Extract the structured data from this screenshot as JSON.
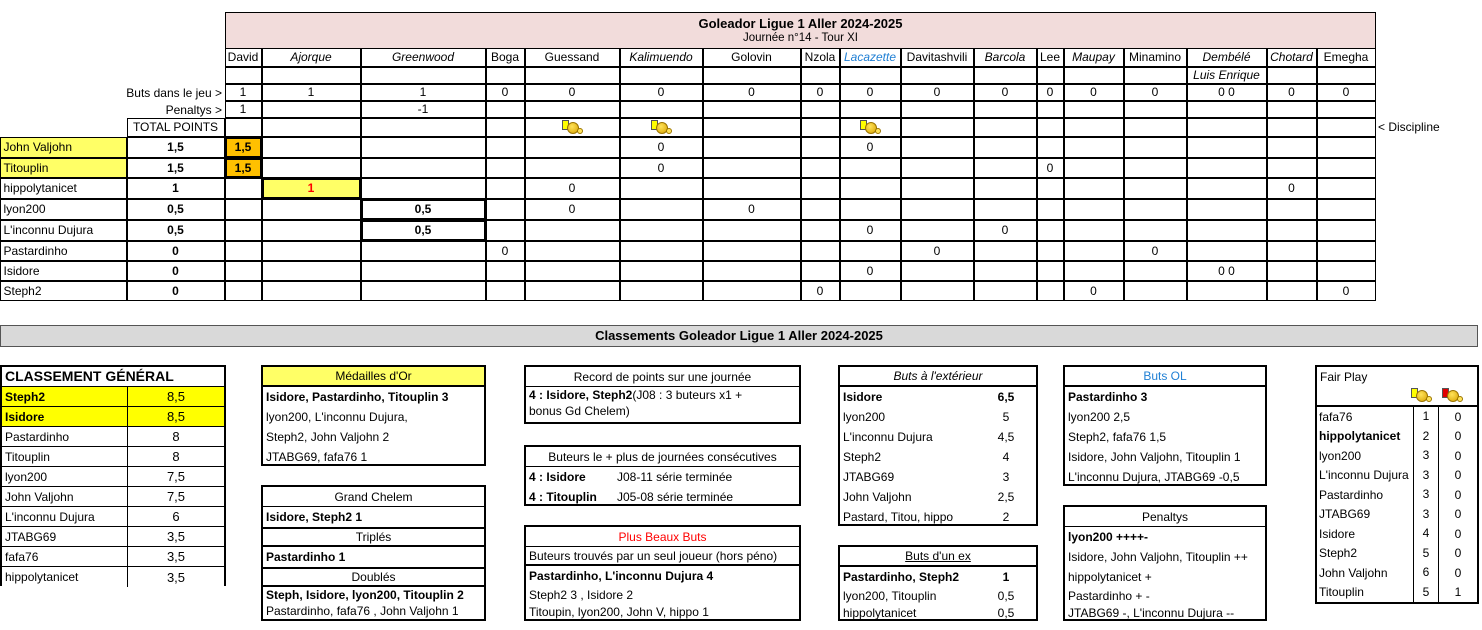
{
  "header": {
    "title": "Goleador Ligue 1 Aller 2024-2025",
    "subtitle": "Journée n°14 - Tour XI",
    "discipline_label": "< Discipline"
  },
  "grid": {
    "columns": [
      {
        "name": "David",
        "italic": false
      },
      {
        "name": "Ajorque",
        "italic": true
      },
      {
        "name": "Greenwood",
        "italic": true
      },
      {
        "name": "Boga",
        "italic": false
      },
      {
        "name": "Guessand",
        "italic": false
      },
      {
        "name": "Kalimuendo",
        "italic": true
      },
      {
        "name": "Golovin",
        "italic": false
      },
      {
        "name": "Nzola",
        "italic": false
      },
      {
        "name": "Lacazette",
        "italic": true,
        "color": "#1f7fd4"
      },
      {
        "name": "Davitashvili",
        "italic": false
      },
      {
        "name": "Barcola",
        "italic": true
      },
      {
        "name": "Lee",
        "italic": false
      },
      {
        "name": "Maupay",
        "italic": true
      },
      {
        "name": "Minamino",
        "italic": false
      },
      {
        "name": "Dembélé",
        "italic": true
      },
      {
        "name": "Chotard",
        "italic": true
      },
      {
        "name": "Emegha",
        "italic": false
      }
    ],
    "subrow": [
      "",
      "",
      "",
      "",
      "",
      "",
      "",
      "",
      "",
      "",
      "",
      "",
      "",
      "",
      "Luis Enrique",
      "",
      ""
    ],
    "buts_label": "Buts dans le jeu >",
    "buts": [
      "1",
      "1",
      "1",
      "0",
      "0",
      "0",
      "0",
      "0",
      "0",
      "0",
      "0",
      "0",
      "0",
      "0",
      "0 0",
      "0",
      "0"
    ],
    "penaltys_label": "Penaltys >",
    "penaltys": [
      "1",
      "",
      "-1",
      "",
      "",
      "",
      "",
      "",
      "",
      "",
      "",
      "",
      "",
      "",
      "",
      "",
      ""
    ],
    "total_label": "TOTAL POINTS",
    "discipline": [
      "",
      "",
      "",
      "",
      "yellow-card",
      "yellow-card",
      "",
      "",
      "yellow-card",
      "",
      "",
      "",
      "",
      "",
      "",
      "",
      ""
    ],
    "players": [
      {
        "name": "John Valjohn",
        "total": "1,5",
        "highlight": true,
        "cells": [
          "1,5",
          "",
          "",
          "",
          "",
          "0",
          "",
          "",
          "0",
          "",
          "",
          "",
          "",
          "",
          "",
          "",
          ""
        ]
      },
      {
        "name": "Titouplin",
        "total": "1,5",
        "highlight": true,
        "cells": [
          "1,5",
          "",
          "",
          "",
          "",
          "0",
          "",
          "",
          "",
          "",
          "",
          "0",
          "",
          "",
          "",
          "",
          ""
        ]
      },
      {
        "name": "hippolytanicet",
        "total": "1",
        "cells": [
          "",
          "1",
          "",
          "",
          "0",
          "",
          "",
          "",
          "",
          "",
          "",
          "",
          "",
          "",
          "",
          "0",
          ""
        ]
      },
      {
        "name": "lyon200",
        "total": "0,5",
        "cells": [
          "",
          "",
          "0,5",
          "",
          "0",
          "",
          "0",
          "",
          "",
          "",
          "",
          "",
          "",
          "",
          "",
          "",
          ""
        ]
      },
      {
        "name": "L'inconnu Dujura",
        "total": "0,5",
        "cells": [
          "",
          "",
          "0,5",
          "",
          "",
          "",
          "",
          "",
          "0",
          "",
          "0",
          "",
          "",
          "",
          "",
          "",
          ""
        ]
      },
      {
        "name": "Pastardinho",
        "total": "0",
        "cells": [
          "",
          "",
          "",
          "0",
          "",
          "",
          "",
          "",
          "",
          "0",
          "",
          "",
          "",
          "0",
          "",
          "",
          ""
        ]
      },
      {
        "name": "Isidore",
        "total": "0",
        "cells": [
          "",
          "",
          "",
          "",
          "",
          "",
          "",
          "",
          "0",
          "",
          "",
          "",
          "",
          "",
          "0 0",
          "",
          ""
        ]
      },
      {
        "name": "Steph2",
        "total": "0",
        "cells": [
          "",
          "",
          "",
          "",
          "",
          "",
          "",
          "0",
          "",
          "",
          "",
          "",
          "0",
          "",
          "",
          "",
          "0"
        ]
      }
    ],
    "colors": {
      "name_highlight": "#ffff66",
      "david_score": "#ffc000",
      "ajorque_score": "#ffff66",
      "ajorque_text": "#ff0000"
    }
  },
  "rankings_title": "Classements Goleador Ligue 1 Aller 2024-2025",
  "classement": {
    "title": "CLASSEMENT GÉNÉRAL",
    "rows": [
      {
        "name": "Steph2",
        "pts": "8,5",
        "top": true
      },
      {
        "name": "Isidore",
        "pts": "8,5",
        "top": true
      },
      {
        "name": "Pastardinho",
        "pts": "8"
      },
      {
        "name": "Titouplin",
        "pts": "8"
      },
      {
        "name": "lyon200",
        "pts": "7,5"
      },
      {
        "name": "John Valjohn",
        "pts": "7,5"
      },
      {
        "name": "L'inconnu Dujura",
        "pts": "6"
      },
      {
        "name": "JTABG69",
        "pts": "3,5"
      },
      {
        "name": "fafa76",
        "pts": "3,5"
      },
      {
        "name": "hippolytanicet",
        "pts": "3,5"
      }
    ]
  },
  "medailles": {
    "title": "Médailles d'Or",
    "lines": [
      {
        "t": "Isidore, Pastardinho, Titouplin 3",
        "b": true
      },
      {
        "t": "lyon200, L'inconnu Dujura,"
      },
      {
        "t": "Steph2, John Valjohn  2"
      },
      {
        "t": "JTABG69, fafa76  1"
      }
    ]
  },
  "grand_chelem": {
    "title": "Grand Chelem",
    "line": "Isidore, Steph2   1",
    "triples_title": "Triplés",
    "triples": "Pastardinho  1",
    "doubles_title": "Doublés",
    "doubles_1": "Steph, Isidore, lyon200, Titouplin 2",
    "doubles_2": "Pastardinho, fafa76 , John Valjohn  1"
  },
  "record": {
    "title": "Record de points sur une journée",
    "bold": "4 : Isidore, Steph2",
    "rest": " (J08 : 3  buteurs x1 +",
    "line2": "bonus Gd Chelem)"
  },
  "consecutives": {
    "title": "Buteurs le + plus de journées consécutives",
    "rows": [
      {
        "who": "4 : Isidore",
        "what": "J08-11 série terminée"
      },
      {
        "who": "4 : Titouplin",
        "what": "J05-08 série terminée"
      }
    ]
  },
  "beaux_buts": {
    "title": "Plus Beaux Buts",
    "title_color": "#ff0000",
    "subtitle": "Buteurs trouvés par un seul joueur (hors péno)",
    "lines": [
      {
        "t": "Pastardinho, L'inconnu Dujura  4",
        "b": true
      },
      {
        "t": "Steph2   3 , Isidore  2"
      },
      {
        "t": "Titoupin, lyon200, John V, hippo  1"
      }
    ]
  },
  "exterieur": {
    "title": "Buts à l'extérieur",
    "rows": [
      {
        "n": "Isidore",
        "v": "6,5",
        "b": true
      },
      {
        "n": "lyon200",
        "v": "5"
      },
      {
        "n": "L'inconnu Dujura",
        "v": "4,5"
      },
      {
        "n": "Steph2",
        "v": "4"
      },
      {
        "n": "JTABG69",
        "v": "3"
      },
      {
        "n": "John Valjohn",
        "v": "2,5"
      },
      {
        "n": "Pastard, Titou, hippo",
        "v": "2"
      }
    ]
  },
  "ex": {
    "title": "Buts d'un ex",
    "rows": [
      {
        "n": "Pastardinho, Steph2",
        "v": "1",
        "b": true
      },
      {
        "n": "lyon200, Titouplin",
        "v": "0,5"
      },
      {
        "n": "hippolytanicet",
        "v": "0,5"
      }
    ]
  },
  "buts_ol": {
    "title": "Buts OL",
    "title_color": "#1f7fd4",
    "lines": [
      {
        "t": "Pastardinho  3",
        "b": true
      },
      {
        "t": "lyon200 2,5"
      },
      {
        "t": "Steph2, fafa76  1,5"
      },
      {
        "t": "Isidore, John Valjohn, Titouplin   1"
      },
      {
        "t": "L'inconnu Dujura, JTABG69   -0,5"
      }
    ]
  },
  "penaltys": {
    "title": "Penaltys",
    "lines": [
      {
        "t": "lyon200    ++++-",
        "b": true
      },
      {
        "t": "Isidore, John Valjohn, Titouplin ++"
      },
      {
        "t": "hippolytanicet     +"
      },
      {
        "t": "Pastardinho + -"
      },
      {
        "t": "JTABG69    -, L'inconnu Dujura --"
      }
    ]
  },
  "fair_play": {
    "title": "Fair Play",
    "icons": [
      "yellow-card",
      "red-card"
    ],
    "rows": [
      {
        "n": "fafa76",
        "y": "1",
        "r": "0"
      },
      {
        "n": "hippolytanicet",
        "y": "2",
        "r": "0",
        "b": true
      },
      {
        "n": "lyon200",
        "y": "3",
        "r": "0"
      },
      {
        "n": "L'inconnu Dujura",
        "y": "3",
        "r": "0"
      },
      {
        "n": "Pastardinho",
        "y": "3",
        "r": "0"
      },
      {
        "n": "JTABG69",
        "y": "3",
        "r": "0"
      },
      {
        "n": "Isidore",
        "y": "4",
        "r": "0"
      },
      {
        "n": "Steph2",
        "y": "5",
        "r": "0"
      },
      {
        "n": "John Valjohn",
        "y": "6",
        "r": "0"
      },
      {
        "n": "Titouplin",
        "y": "5",
        "r": "1"
      }
    ]
  }
}
